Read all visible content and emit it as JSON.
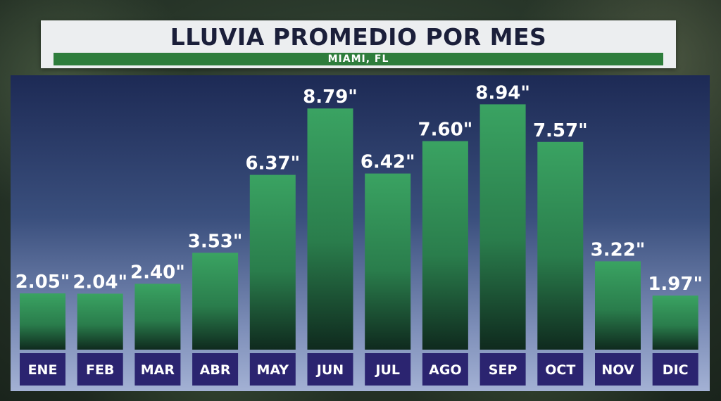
{
  "title": "LLUVIA PROMEDIO POR MES",
  "subtitle": "MIAMI, FL",
  "colors": {
    "bar_top": "#3aa362",
    "bar_bottom": "#0f2a1e",
    "category_box": "#2b2470",
    "title_text": "#1b1f3a",
    "subtitle_bar": "#2e7d3c"
  },
  "chart_data": {
    "type": "bar",
    "title": "LLUVIA PROMEDIO POR MES",
    "subtitle": "MIAMI, FL",
    "categories": [
      "ENE",
      "FEB",
      "MAR",
      "ABR",
      "MAY",
      "JUN",
      "JUL",
      "AGO",
      "SEP",
      "OCT",
      "NOV",
      "DIC"
    ],
    "values": [
      2.05,
      2.04,
      2.4,
      3.53,
      6.37,
      8.79,
      6.42,
      7.6,
      8.94,
      7.57,
      3.22,
      1.97
    ],
    "data_labels": [
      "2.05\"",
      "2.04\"",
      "2.40\"",
      "3.53\"",
      "6.37\"",
      "8.79\"",
      "6.42\"",
      "7.60\"",
      "8.94\"",
      "7.57\"",
      "3.22\"",
      "1.97\""
    ],
    "unit": "\"",
    "xlabel": "",
    "ylabel": "",
    "grid": false,
    "legend": "none"
  }
}
